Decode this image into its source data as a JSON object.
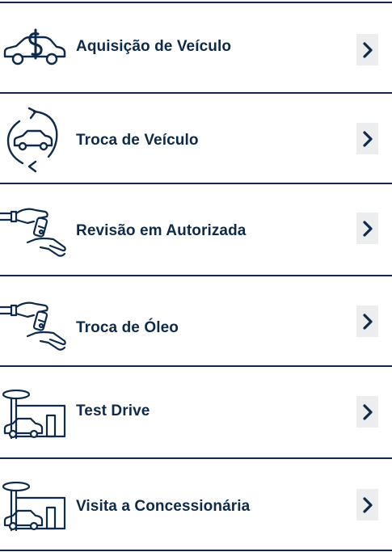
{
  "items": [
    {
      "label": "Aquisição de Veículo",
      "icon": "car-dollar-icon"
    },
    {
      "label": "Troca de Veículo",
      "icon": "car-exchange-icon"
    },
    {
      "label": "Revisão em Autorizada",
      "icon": "hand-key-icon"
    },
    {
      "label": "Troca de Óleo",
      "icon": "hand-key-icon"
    },
    {
      "label": "Test Drive",
      "icon": "dealership-icon"
    },
    {
      "label": "Visita a Concessionária",
      "icon": "dealership-icon"
    }
  ],
  "colors": {
    "primary": "#0e2a4a",
    "chevron_bg": "#ecedee",
    "background": "#ffffff"
  }
}
